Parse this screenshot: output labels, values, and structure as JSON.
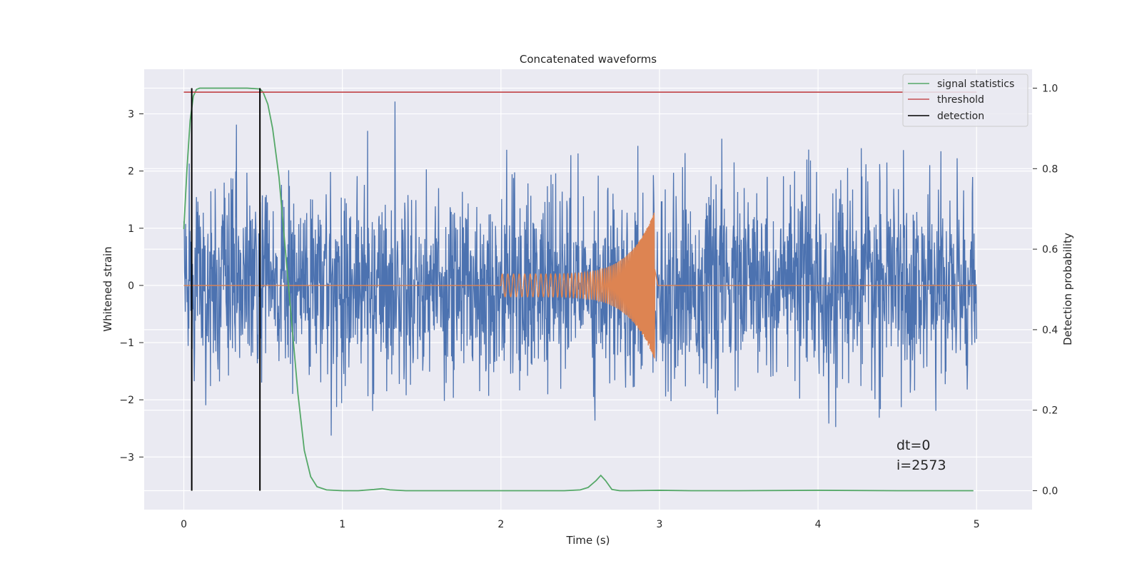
{
  "chart_data": {
    "type": "line",
    "title": "Concatenated waveforms",
    "xlabel": "Time (s)",
    "ylabel": "Whitened strain",
    "y2label": "Detection probability",
    "xlim": [
      -0.25,
      5.35
    ],
    "ylim": [
      -3.92,
      3.78
    ],
    "y2lim": [
      -0.047,
      1.047
    ],
    "xticks": [
      0,
      1,
      2,
      3,
      4,
      5
    ],
    "yticks": [
      -3,
      -2,
      -1,
      0,
      1,
      2,
      3
    ],
    "y2ticks": [
      0.0,
      0.2,
      0.4,
      0.6,
      0.8,
      1.0
    ],
    "xtick_labels": [
      "0",
      "1",
      "2",
      "3",
      "4",
      "5"
    ],
    "ytick_labels": [
      "−3",
      "−2",
      "−1",
      "0",
      "1",
      "2",
      "3"
    ],
    "y2tick_labels": [
      "0.0",
      "0.2",
      "0.4",
      "0.6",
      "0.8",
      "1.0"
    ],
    "grid": true,
    "legend": "top-right",
    "series": [
      {
        "name": "",
        "axis": "left",
        "color": "#4c72b0",
        "kind": "noise",
        "x_range": [
          0,
          5
        ],
        "std": 0.85
      },
      {
        "name": "",
        "axis": "left",
        "color": "#dd8452",
        "kind": "chirp",
        "x_range": [
          2.0,
          2.97
        ],
        "amp_start": 0.2,
        "amp_peak": 1.3
      },
      {
        "name": "signal statistics",
        "axis": "right",
        "color": "#55a868",
        "x": [
          0.0,
          0.02,
          0.04,
          0.06,
          0.08,
          0.1,
          0.2,
          0.3,
          0.4,
          0.48,
          0.5,
          0.53,
          0.56,
          0.6,
          0.64,
          0.68,
          0.72,
          0.76,
          0.8,
          0.84,
          0.9,
          1.0,
          1.1,
          1.2,
          1.25,
          1.3,
          1.4,
          1.6,
          1.8,
          2.0,
          2.2,
          2.4,
          2.5,
          2.55,
          2.6,
          2.63,
          2.66,
          2.7,
          2.75,
          2.8,
          3.0,
          3.2,
          3.5,
          4.0,
          4.5,
          4.98
        ],
        "y": [
          0.65,
          0.8,
          0.92,
          0.98,
          0.997,
          1.0,
          1.0,
          1.0,
          1.0,
          0.998,
          0.99,
          0.96,
          0.9,
          0.78,
          0.6,
          0.42,
          0.24,
          0.1,
          0.035,
          0.01,
          0.002,
          0.0,
          0.0,
          0.003,
          0.005,
          0.002,
          0.0,
          0.0,
          0.0,
          0.0,
          0.0,
          0.0,
          0.002,
          0.008,
          0.025,
          0.038,
          0.025,
          0.003,
          0.0,
          0.0,
          0.001,
          0.0,
          0.0,
          0.001,
          0.0,
          0.0
        ]
      },
      {
        "name": "threshold",
        "axis": "right",
        "color": "#c44e52",
        "x": [
          0,
          5
        ],
        "y": [
          0.99,
          0.99
        ]
      },
      {
        "name": "detection",
        "axis": "right",
        "color": "#000000",
        "kind": "vlines",
        "x": [
          0.05,
          0.48
        ],
        "y_range": [
          0.0,
          1.0
        ]
      }
    ],
    "annotations": [
      "dt=0",
      "i=2573"
    ]
  }
}
